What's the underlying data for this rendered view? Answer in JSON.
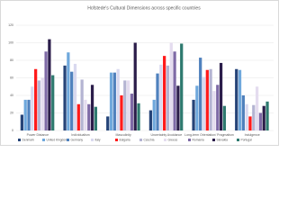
{
  "chart_data": {
    "type": "bar",
    "title": "Hofstede's Cultural Dimensions across specific countries",
    "categories": [
      "Power Distance",
      "Individualism",
      "Masculinity",
      "Uncertainty Avoidance",
      "Long-term Orientation/ Pragmatism",
      "Indulgence"
    ],
    "series": [
      {
        "name": "Denmark",
        "color": "#264478",
        "values": [
          18,
          74,
          16,
          23,
          35,
          70
        ]
      },
      {
        "name": "United Kingdom",
        "color": "#6fa8dc",
        "values": [
          35,
          89,
          66,
          35,
          51,
          69
        ]
      },
      {
        "name": "Germany",
        "color": "#4f81bd",
        "values": [
          35,
          67,
          66,
          65,
          83,
          40
        ]
      },
      {
        "name": "Italy",
        "color": "#d9d9ef",
        "values": [
          50,
          76,
          70,
          75,
          61,
          30
        ]
      },
      {
        "name": "Bulgaria",
        "color": "#ff1a1a",
        "values": [
          70,
          30,
          40,
          85,
          69,
          16
        ]
      },
      {
        "name": "Czechia",
        "color": "#b4b4d2",
        "values": [
          57,
          58,
          57,
          74,
          70,
          29
        ]
      },
      {
        "name": "Greece",
        "color": "#e4dcef",
        "values": [
          60,
          35,
          57,
          100,
          45,
          50
        ]
      },
      {
        "name": "Romania",
        "color": "#7e6aa6",
        "values": [
          90,
          30,
          42,
          90,
          52,
          20
        ]
      },
      {
        "name": "Slovakia",
        "color": "#2b1d4a",
        "values": [
          104,
          52,
          100,
          51,
          77,
          28
        ]
      },
      {
        "name": "Portugal",
        "color": "#2e7a6f",
        "values": [
          63,
          27,
          31,
          99,
          28,
          33
        ]
      }
    ],
    "ylim": [
      0,
      120
    ],
    "yticks": [
      0,
      20,
      40,
      60,
      80,
      100,
      120
    ],
    "grid": true
  }
}
